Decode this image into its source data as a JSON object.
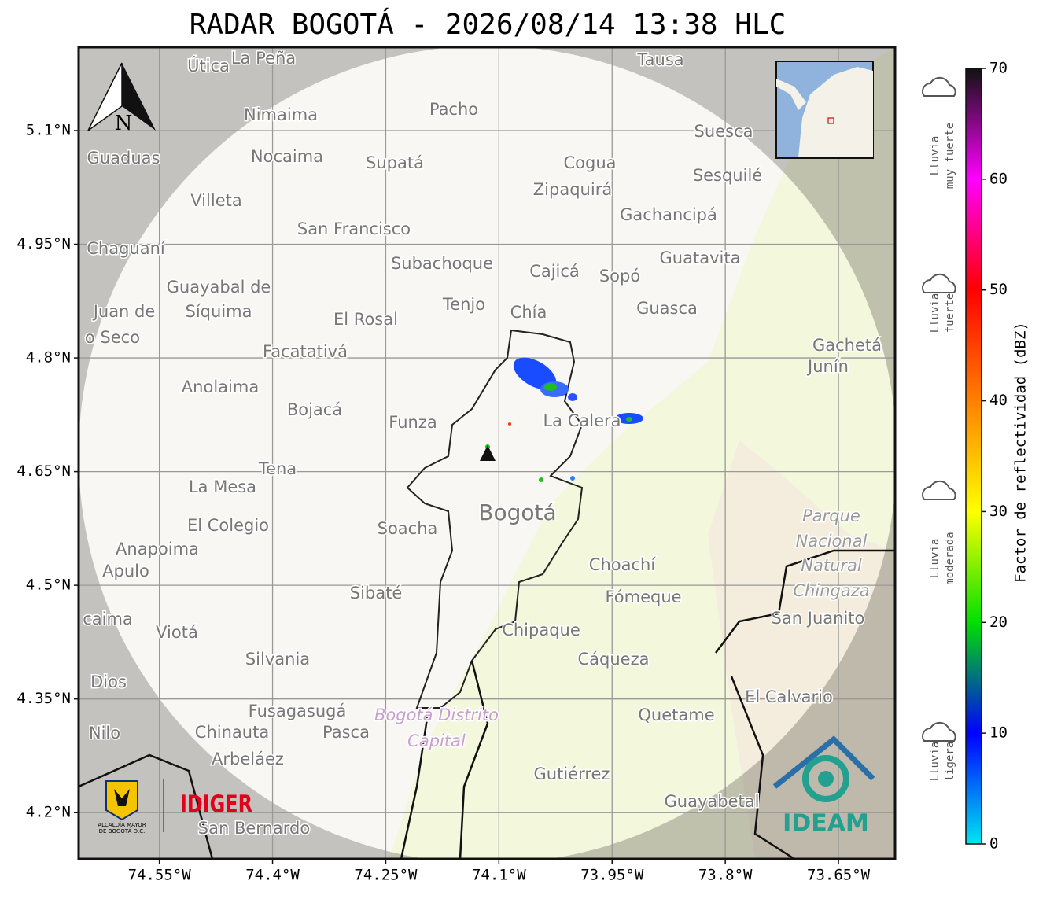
{
  "title": "RADAR BOGOTÁ - 2026/08/14 13:38 HLC",
  "map": {
    "xlim": [
      -74.657,
      -73.575
    ],
    "ylim": [
      4.139,
      5.21
    ],
    "xticks": [
      {
        "value": -74.55,
        "label": "74.55°W"
      },
      {
        "value": -74.4,
        "label": "74.4°W"
      },
      {
        "value": -74.25,
        "label": "74.25°W"
      },
      {
        "value": -74.1,
        "label": "74.1°W"
      },
      {
        "value": -73.95,
        "label": "73.95°W"
      },
      {
        "value": -73.8,
        "label": "73.8°W"
      },
      {
        "value": -73.65,
        "label": "73.65°W"
      }
    ],
    "yticks": [
      {
        "value": 5.1,
        "label": "5.1°N"
      },
      {
        "value": 4.95,
        "label": "4.95°N"
      },
      {
        "value": 4.8,
        "label": "4.8°N"
      },
      {
        "value": 4.65,
        "label": "4.65°N"
      },
      {
        "value": 4.5,
        "label": "4.5°N"
      },
      {
        "value": 4.35,
        "label": "4.35°N"
      },
      {
        "value": 4.2,
        "label": "4.2°N"
      }
    ],
    "north": "N",
    "places": [
      "Útica",
      "La Peña",
      "Tausa",
      "Pacho",
      "Nimaima",
      "Guaduas",
      "Nocaima",
      "Supatá",
      "Cogua",
      "Suesca",
      "Sesquilé",
      "Zipaquirá",
      "Villeta",
      "Gachancipá",
      "San Francisco",
      "Chaguaní",
      "Guatavita",
      "Subachoque",
      "Cajicá",
      "Sopó",
      "Guayabal de",
      "Síquima",
      "Juan de",
      "o Seco",
      "Tenjo",
      "Chía",
      "El Rosal",
      "Guasca",
      "Facatativá",
      "Gachetá",
      "Junín",
      "Anolaima",
      "Bojacá",
      "Funza",
      "La Calera",
      "Tena",
      "La Mesa",
      "El Colegio",
      "Soacha",
      "Bogotá",
      "Parque",
      "Nacional",
      "Natural",
      "Chingaza",
      "San Juanito",
      "Anapoima",
      "Apulo",
      "Choachí",
      "Fómeque",
      "Sibaté",
      "caima",
      "Viotá",
      "Chipaque",
      "Silvania",
      "Cáqueza",
      "Dios",
      "El Calvario",
      "Fusagasugá",
      "Quetame",
      "Bogotá Distrito",
      "Capital",
      "Nilo",
      "Chinauta",
      "Pasca",
      "Arbeláez",
      "Gutiérrez",
      "Guayabetal",
      "San Bernardo"
    ]
  },
  "colorbar": {
    "label": "Factor de reflectividad (dBZ)",
    "lim": [
      0,
      70
    ],
    "ticks": [
      0,
      10,
      20,
      30,
      40,
      50,
      60,
      70
    ],
    "colors": [
      "#00e5f0",
      "#0000ff",
      "#00e000",
      "#ffff00",
      "#ff8000",
      "#ff0000",
      "#ff00ff",
      "#111111"
    ]
  },
  "legend": [
    [
      "Lluvia",
      "muy fuerte"
    ],
    [
      "Lluvia",
      "fuerte"
    ],
    [
      "Lluvia",
      "moderada"
    ],
    [
      "Lluvia",
      "ligera"
    ]
  ],
  "logos": {
    "alcaldia": [
      "ALCALDÍA MAYOR",
      "DE BOGOTÁ D.C."
    ],
    "idiger": "IDIGER",
    "ideam": "IDEAM"
  }
}
